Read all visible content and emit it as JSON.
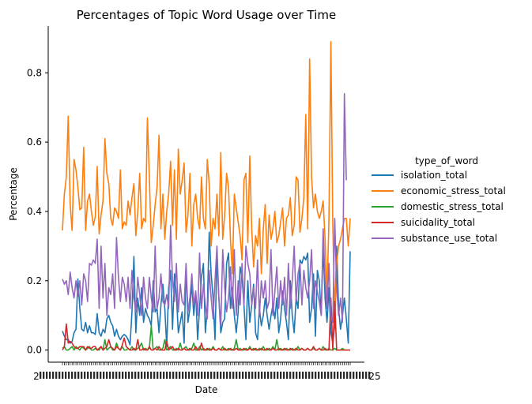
{
  "chart_data": {
    "type": "line",
    "title": "Percentages of Topic Word Usage over Time",
    "xlabel": "Date",
    "ylabel": "Percentage",
    "ylim": [
      -0.035,
      0.935
    ],
    "yticks": [
      0.0,
      0.2,
      0.4,
      0.6,
      0.8
    ],
    "ytick_labels": [
      "0.0",
      "0.2",
      "0.4",
      "0.6",
      "0.8"
    ],
    "x_tick_label_start": "2",
    "x_tick_label_end": "25",
    "grid": false,
    "legend_title": "type_of_word",
    "legend_position": "right",
    "colors": {
      "isolation_total": "#1f77b4",
      "economic_stress_total": "#ff7f0e",
      "domestic_stress_total": "#2ca02c",
      "suicidality_total": "#d62728",
      "substance_use_total": "#9467bd"
    },
    "series": [
      {
        "name": "isolation_total",
        "values": [
          0.055,
          0.04,
          0.03,
          0.03,
          0.02,
          0.025,
          0.05,
          0.06,
          0.205,
          0.12,
          0.06,
          0.055,
          0.08,
          0.05,
          0.07,
          0.05,
          0.05,
          0.045,
          0.105,
          0.05,
          0.04,
          0.06,
          0.05,
          0.09,
          0.1,
          0.08,
          0.07,
          0.04,
          0.06,
          0.04,
          0.03,
          0.04,
          0.045,
          0.04,
          0.03,
          0.015,
          0.11,
          0.27,
          0.05,
          0.15,
          0.1,
          0.18,
          0.08,
          0.12,
          0.1,
          0.09,
          0.07,
          0.2,
          0.11,
          0.12,
          0.05,
          0.13,
          0.19,
          0.12,
          0.01,
          0.18,
          0.23,
          0.06,
          0.22,
          0.16,
          0.05,
          0.08,
          0.11,
          0.02,
          0.24,
          0.08,
          0.12,
          0.19,
          0.1,
          0.17,
          0.03,
          0.12,
          0.21,
          0.25,
          0.05,
          0.12,
          0.34,
          0.22,
          0.15,
          0.03,
          0.27,
          0.15,
          0.05,
          0.08,
          0.09,
          0.25,
          0.28,
          0.12,
          0.18,
          0.1,
          0.05,
          0.11,
          0.24,
          0.21,
          0.13,
          0.03,
          0.2,
          0.08,
          0.13,
          0.19,
          0.05,
          0.03,
          0.12,
          0.07,
          0.1,
          0.15,
          0.1,
          0.06,
          0.1,
          0.13,
          0.09,
          0.15,
          0.05,
          0.09,
          0.17,
          0.12,
          0.08,
          0.03,
          0.2,
          0.1,
          0.05,
          0.15,
          0.12,
          0.26,
          0.25,
          0.27,
          0.26,
          0.28,
          0.08,
          0.12,
          0.22,
          0.04,
          0.23,
          0.2,
          0.1,
          0.3,
          0.15,
          0.08,
          0.18,
          0.05,
          0.02,
          0.07,
          0.3,
          0.12,
          0.06,
          0.1,
          0.15,
          0.09,
          0.02,
          0.285
        ]
      },
      {
        "name": "economic_stress_total",
        "values": [
          0.345,
          0.45,
          0.5,
          0.675,
          0.42,
          0.345,
          0.55,
          0.52,
          0.47,
          0.405,
          0.41,
          0.585,
          0.345,
          0.43,
          0.45,
          0.4,
          0.36,
          0.385,
          0.53,
          0.335,
          0.39,
          0.43,
          0.61,
          0.51,
          0.48,
          0.38,
          0.36,
          0.41,
          0.4,
          0.38,
          0.52,
          0.35,
          0.37,
          0.36,
          0.43,
          0.39,
          0.44,
          0.48,
          0.33,
          0.4,
          0.51,
          0.35,
          0.38,
          0.37,
          0.67,
          0.5,
          0.31,
          0.36,
          0.42,
          0.47,
          0.62,
          0.35,
          0.45,
          0.32,
          0.4,
          0.45,
          0.545,
          0.36,
          0.52,
          0.32,
          0.58,
          0.45,
          0.49,
          0.54,
          0.34,
          0.39,
          0.51,
          0.3,
          0.42,
          0.45,
          0.38,
          0.35,
          0.5,
          0.38,
          0.35,
          0.55,
          0.48,
          0.3,
          0.38,
          0.35,
          0.45,
          0.33,
          0.57,
          0.32,
          0.39,
          0.51,
          0.47,
          0.32,
          0.22,
          0.45,
          0.41,
          0.37,
          0.33,
          0.26,
          0.49,
          0.51,
          0.31,
          0.56,
          0.35,
          0.24,
          0.33,
          0.3,
          0.38,
          0.22,
          0.35,
          0.42,
          0.25,
          0.39,
          0.32,
          0.35,
          0.4,
          0.31,
          0.33,
          0.37,
          0.41,
          0.3,
          0.38,
          0.39,
          0.44,
          0.33,
          0.36,
          0.5,
          0.49,
          0.34,
          0.38,
          0.44,
          0.68,
          0.35,
          0.84,
          0.5,
          0.41,
          0.45,
          0.4,
          0.38,
          0.4,
          0.43,
          0.32,
          0.15,
          0.38,
          0.89,
          0.36,
          0.1,
          0.25,
          0.3,
          0.32,
          0.35,
          0.38,
          0.38,
          0.3,
          0.38
        ]
      },
      {
        "name": "domestic_stress_total",
        "values": [
          0.005,
          0.01,
          0.0,
          0.0,
          0.005,
          0.01,
          0.0,
          0.01,
          0.005,
          0.0,
          0.01,
          0.005,
          0.0,
          0.005,
          0.01,
          0.0,
          0.0,
          0.005,
          0.0,
          0.0,
          0.01,
          0.0,
          0.03,
          0.0,
          0.005,
          0.01,
          0.0,
          0.0,
          0.02,
          0.005,
          0.0,
          0.01,
          0.0,
          0.0,
          0.005,
          0.0,
          0.01,
          0.0,
          0.0,
          0.005,
          0.01,
          0.02,
          0.0,
          0.005,
          0.0,
          0.005,
          0.07,
          0.0,
          0.005,
          0.01,
          0.0,
          0.0,
          0.005,
          0.03,
          0.0,
          0.005,
          0.01,
          0.0,
          0.0,
          0.005,
          0.0,
          0.02,
          0.0,
          0.005,
          0.01,
          0.0,
          0.0,
          0.005,
          0.02,
          0.0,
          0.0,
          0.01,
          0.0,
          0.005,
          0.0,
          0.0,
          0.005,
          0.0,
          0.01,
          0.0,
          0.0,
          0.005,
          0.0,
          0.01,
          0.0,
          0.0,
          0.005,
          0.0,
          0.0,
          0.005,
          0.03,
          0.0,
          0.005,
          0.0,
          0.0,
          0.005,
          0.0,
          0.01,
          0.0,
          0.005,
          0.0,
          0.0,
          0.005,
          0.0,
          0.01,
          0.0,
          0.0,
          0.005,
          0.0,
          0.01,
          0.0,
          0.03,
          0.0,
          0.005,
          0.0,
          0.0,
          0.005,
          0.0,
          0.0,
          0.005,
          0.0,
          0.0,
          0.01,
          0.0,
          0.005,
          0.0,
          0.0,
          0.005,
          0.0,
          0.0,
          0.005,
          0.0,
          0.0,
          0.005,
          0.0,
          0.01,
          0.0,
          0.0,
          0.005,
          0.0,
          0.0,
          0.005,
          0.0,
          0.0,
          0.0,
          0.005,
          0.0,
          0.0,
          0.0,
          0.0
        ]
      },
      {
        "name": "suicidality_total",
        "values": [
          0.0,
          0.01,
          0.075,
          0.02,
          0.025,
          0.02,
          0.01,
          0.005,
          0.005,
          0.01,
          0.01,
          0.01,
          0.0,
          0.01,
          0.005,
          0.005,
          0.01,
          0.01,
          0.0,
          0.005,
          0.01,
          0.0,
          0.005,
          0.01,
          0.03,
          0.01,
          0.005,
          0.0,
          0.01,
          0.005,
          0.0,
          0.015,
          0.035,
          0.01,
          0.005,
          0.0,
          0.0,
          0.005,
          0.0,
          0.03,
          0.0,
          0.0,
          0.005,
          0.0,
          0.0,
          0.01,
          0.0,
          0.0,
          0.005,
          0.0,
          0.01,
          0.0,
          0.0,
          0.0,
          0.025,
          0.0,
          0.005,
          0.01,
          0.0,
          0.0,
          0.005,
          0.0,
          0.0,
          0.005,
          0.0,
          0.0,
          0.005,
          0.0,
          0.0,
          0.01,
          0.0,
          0.0,
          0.02,
          0.0,
          0.0,
          0.005,
          0.0,
          0.0,
          0.005,
          0.0,
          0.0,
          0.005,
          0.0,
          0.0,
          0.005,
          0.0,
          0.0,
          0.005,
          0.0,
          0.0,
          0.005,
          0.0,
          0.0,
          0.0,
          0.005,
          0.0,
          0.0,
          0.005,
          0.0,
          0.0,
          0.005,
          0.0,
          0.0,
          0.005,
          0.0,
          0.0,
          0.005,
          0.0,
          0.0,
          0.005,
          0.0,
          0.0,
          0.005,
          0.0,
          0.0,
          0.005,
          0.0,
          0.0,
          0.005,
          0.0,
          0.0,
          0.005,
          0.0,
          0.0,
          0.005,
          0.0,
          0.0,
          0.005,
          0.0,
          0.0,
          0.01,
          0.0,
          0.0,
          0.005,
          0.0,
          0.0,
          0.005,
          0.0,
          0.0,
          0.15,
          0.0,
          0.14,
          0.0,
          0.0,
          0.0,
          0.0,
          0.0,
          0.0,
          0.0,
          0.0
        ]
      },
      {
        "name": "substance_use_total",
        "values": [
          0.205,
          0.19,
          0.2,
          0.16,
          0.225,
          0.18,
          0.15,
          0.2,
          0.155,
          0.2,
          0.13,
          0.22,
          0.2,
          0.14,
          0.25,
          0.245,
          0.26,
          0.25,
          0.32,
          0.12,
          0.3,
          0.15,
          0.25,
          0.1,
          0.18,
          0.16,
          0.22,
          0.12,
          0.325,
          0.21,
          0.14,
          0.21,
          0.19,
          0.14,
          0.21,
          0.12,
          0.23,
          0.15,
          0.11,
          0.21,
          0.16,
          0.1,
          0.21,
          0.15,
          0.12,
          0.21,
          0.15,
          0.11,
          0.3,
          0.12,
          0.15,
          0.22,
          0.14,
          0.13,
          0.16,
          0.12,
          0.36,
          0.2,
          0.14,
          0.25,
          0.11,
          0.19,
          0.14,
          0.13,
          0.25,
          0.11,
          0.15,
          0.22,
          0.13,
          0.17,
          0.1,
          0.28,
          0.12,
          0.19,
          0.13,
          0.09,
          0.23,
          0.15,
          0.09,
          0.2,
          0.3,
          0.15,
          0.07,
          0.29,
          0.18,
          0.11,
          0.15,
          0.24,
          0.12,
          0.29,
          0.1,
          0.2,
          0.13,
          0.25,
          0.13,
          0.3,
          0.25,
          0.22,
          0.13,
          0.18,
          0.12,
          0.26,
          0.1,
          0.2,
          0.15,
          0.2,
          0.12,
          0.14,
          0.29,
          0.1,
          0.17,
          0.24,
          0.12,
          0.2,
          0.13,
          0.21,
          0.1,
          0.25,
          0.12,
          0.2,
          0.3,
          0.14,
          0.22,
          0.25,
          0.13,
          0.23,
          0.18,
          0.15,
          0.2,
          0.29,
          0.12,
          0.2,
          0.17,
          0.14,
          0.1,
          0.35,
          0.2,
          0.12,
          0.25,
          0.1,
          0.08,
          0.38,
          0.18,
          0.1,
          0.15,
          0.08,
          0.74,
          0.49
        ]
      }
    ]
  }
}
